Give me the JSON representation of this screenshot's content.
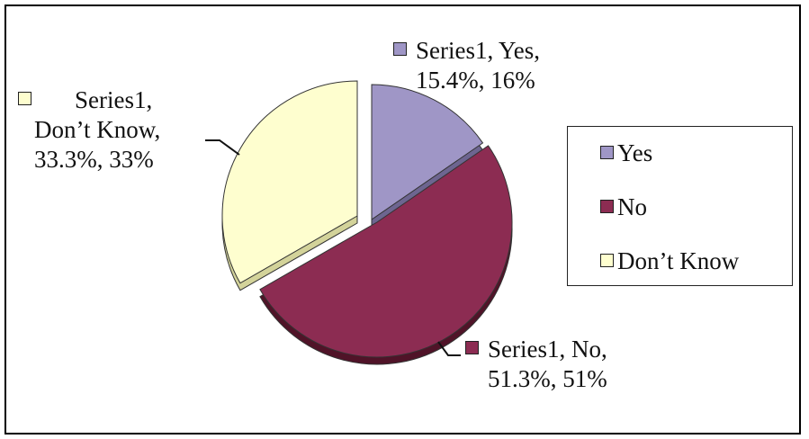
{
  "chart_data": {
    "type": "pie",
    "exploded": true,
    "three_d": true,
    "series_name": "Series1",
    "slices": [
      {
        "key": "yes",
        "category": "Yes",
        "percent_label": "15.4%",
        "value_label": "16%",
        "percent": 15.4,
        "color": "#9f96c6",
        "side_color": "#6d6590"
      },
      {
        "key": "no",
        "category": "No",
        "percent_label": "51.3%",
        "value_label": "51%",
        "percent": 51.3,
        "color": "#8c2c52",
        "side_color": "#501328"
      },
      {
        "key": "dontknow",
        "category": "Don’t Know",
        "percent_label": "33.3%",
        "value_label": "33%",
        "percent": 33.3,
        "color": "#fefecf",
        "side_color": "#d3d39a"
      }
    ],
    "data_labels": {
      "yes": {
        "line1": "Series1, Yes,",
        "line2": "15.4%, 16%"
      },
      "no": {
        "line1": "Series1, No,",
        "line2": "51.3%, 51%"
      },
      "dontknow": {
        "line1": "Series1,",
        "line2": "Don’t Know,",
        "line3": "33.3%, 33%"
      }
    },
    "legend": {
      "position": "right",
      "items": [
        "Yes",
        "No",
        "Don’t Know"
      ]
    }
  }
}
